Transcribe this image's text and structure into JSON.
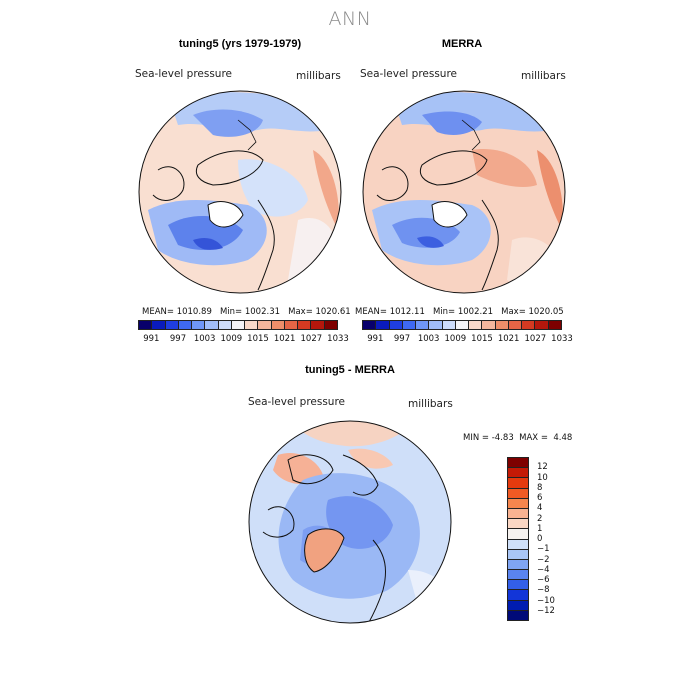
{
  "page_title": "ANN",
  "panels": [
    {
      "title": "tuning5 (yrs 1979-1979)",
      "field_label": "Sea-level pressure",
      "units_label": "millibars",
      "stats": "MEAN= 1010.89   Min= 1002.31   Max= 1020.61",
      "map_name": "tuning5-slp-map"
    },
    {
      "title": "MERRA",
      "field_label": "Sea-level pressure",
      "units_label": "millibars",
      "stats": "MEAN= 1012.11   Min= 1002.21   Max= 1020.05",
      "map_name": "merra-slp-map"
    }
  ],
  "colorbar_abs": {
    "colors": [
      "#08006b",
      "#0a1bbd",
      "#1f3ee2",
      "#3f69f1",
      "#6f96f7",
      "#a1bdf9",
      "#cddcfb",
      "#f4f3f7",
      "#f9d8c9",
      "#f4b69d",
      "#ef8e6a",
      "#e56546",
      "#d43a22",
      "#b5170c",
      "#7e0000"
    ],
    "ticks": [
      "991",
      "997",
      "1003",
      "1009",
      "1015",
      "1021",
      "1027",
      "1033"
    ]
  },
  "diff_panel": {
    "title": "tuning5 - MERRA",
    "field_label": "Sea-level pressure",
    "units_label": "millibars",
    "min_label": "MIN =",
    "min_value": "-4.83",
    "max_label": "MAX =",
    "max_value": "4.48",
    "map_name": "diff-slp-map"
  },
  "colorbar_diff": {
    "colors": [
      "#7e0000",
      "#c41a06",
      "#e53a0e",
      "#f05a24",
      "#f6864e",
      "#f9b392",
      "#fbd7c4",
      "#f6f2ef",
      "#cfe0f9",
      "#a9c6f6",
      "#7fa5f3",
      "#5a84ef",
      "#335fe8",
      "#1235d8",
      "#001cb0",
      "#000a78"
    ],
    "ticks": [
      "12",
      "10",
      "8",
      "6",
      "4",
      "2",
      "1",
      "0",
      "−1",
      "−2",
      "−4",
      "−6",
      "−8",
      "−10",
      "−12"
    ]
  }
}
